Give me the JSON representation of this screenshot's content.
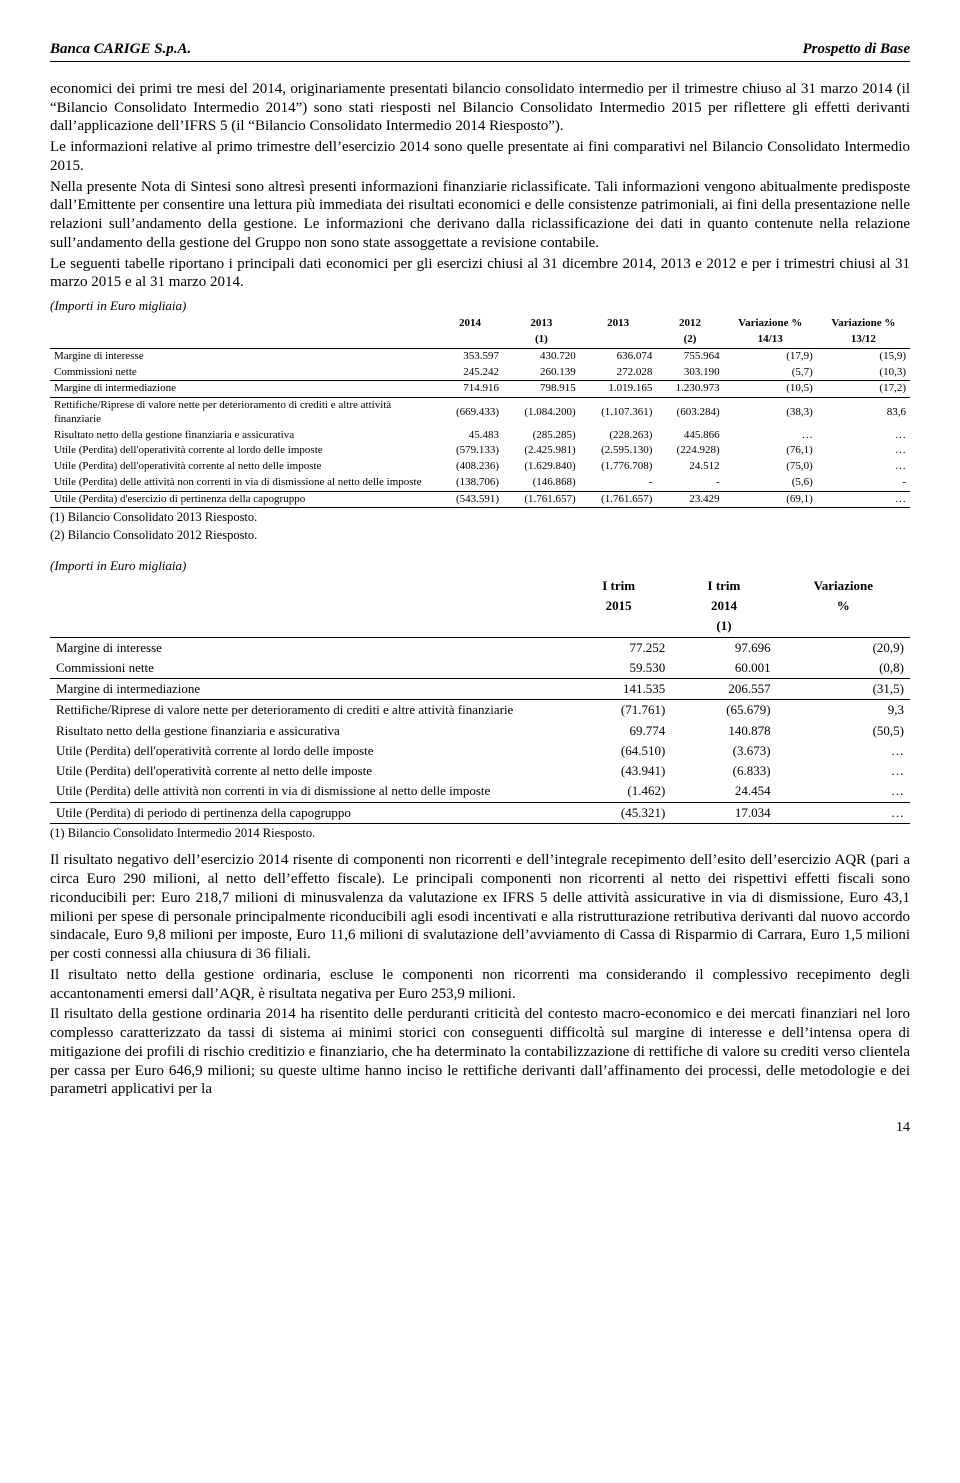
{
  "header": {
    "left": "Banca CARIGE S.p.A.",
    "right": "Prospetto di Base"
  },
  "para1": "economici dei primi tre mesi del 2014, originariamente presentati bilancio consolidato intermedio per il trimestre chiuso al 31 marzo 2014 (il “Bilancio Consolidato Intermedio 2014”) sono stati riesposti nel Bilancio Consolidato Intermedio 2015 per riflettere gli effetti derivanti dall’applicazione dell’IFRS 5 (il “Bilancio Consolidato Intermedio 2014 Riesposto”).",
  "para2": "Le informazioni relative al primo trimestre dell’esercizio 2014 sono quelle presentate ai fini comparativi nel Bilancio Consolidato Intermedio 2015.",
  "para3": "Nella presente Nota di Sintesi sono altresì presenti informazioni finanziarie riclassificate. Tali informazioni vengono abitualmente predisposte dall’Emittente per consentire una lettura più immediata dei risultati economici e delle consistenze patrimoniali, ai fini della presentazione nelle relazioni sull’andamento della gestione. Le informazioni che derivano dalla riclassificazione dei dati in quanto contenute nella relazione sull’andamento della gestione del Gruppo non sono state assoggettate a revisione contabile.",
  "para4": "Le seguenti tabelle riportano i principali dati economici per gli esercizi chiusi al 31 dicembre 2014, 2013 e 2012 e per i trimestri chiusi al 31 marzo 2015 e al 31 marzo 2014.",
  "tbl_caption": "(Importi in Euro migliaia)",
  "table1": {
    "headers1": [
      "2014",
      "2013",
      "2013",
      "2012",
      "Variazione %",
      "Variazione %"
    ],
    "headers2": [
      "",
      "(1)",
      "",
      "(2)",
      "14/13",
      "13/12"
    ],
    "rows": [
      [
        "Margine di interesse",
        "353.597",
        "430.720",
        "636.074",
        "755.964",
        "(17,9)",
        "(15,9)"
      ],
      [
        "Commissioni nette",
        "245.242",
        "260.139",
        "272.028",
        "303.190",
        "(5,7)",
        "(10,3)"
      ],
      [
        "Margine di intermediazione",
        "714.916",
        "798.915",
        "1.019.165",
        "1.230.973",
        "(10,5)",
        "(17,2)"
      ],
      [
        "Rettifiche/Riprese di valore nette per deterioramento di crediti e altre attività finanziarie",
        "(669.433)",
        "(1.084.200)",
        "(1.107.361)",
        "(603.284)",
        "(38,3)",
        "83,6"
      ],
      [
        "Risultato netto della gestione finanziaria e assicurativa",
        "45.483",
        "(285.285)",
        "(228.263)",
        "445.866",
        "…",
        "…"
      ],
      [
        "Utile (Perdita) dell'operatività corrente al lordo delle imposte",
        "(579.133)",
        "(2.425.981)",
        "(2.595.130)",
        "(224.928)",
        "(76,1)",
        "…"
      ],
      [
        "Utile (Perdita) dell'operatività corrente al netto delle imposte",
        "(408.236)",
        "(1.629.840)",
        "(1.776.708)",
        "24.512",
        "(75,0)",
        "…"
      ],
      [
        "Utile (Perdita) delle attività non correnti in via di dismissione al netto delle imposte",
        "(138.706)",
        "(146.868)",
        "-",
        "-",
        "(5,6)",
        "-"
      ],
      [
        "Utile (Perdita) d'esercizio di pertinenza della capogruppo",
        "(543.591)",
        "(1.761.657)",
        "(1.761.657)",
        "23.429",
        "(69,1)",
        "…"
      ]
    ],
    "notes": [
      "(1)  Bilancio Consolidato 2013 Riesposto.",
      "(2)  Bilancio Consolidato 2012 Riesposto."
    ]
  },
  "table2": {
    "headers1": [
      "I trim",
      "I trim",
      "Variazione"
    ],
    "headers2": [
      "2015",
      "2014",
      "%"
    ],
    "headers3": [
      "",
      "(1)",
      ""
    ],
    "rows": [
      [
        "Margine di interesse",
        "77.252",
        "97.696",
        "(20,9)"
      ],
      [
        "Commissioni nette",
        "59.530",
        "60.001",
        "(0,8)"
      ],
      [
        "Margine di intermediazione",
        "141.535",
        "206.557",
        "(31,5)"
      ],
      [
        "Rettifiche/Riprese di valore nette per deterioramento di crediti e altre attività finanziarie",
        "(71.761)",
        "(65.679)",
        "9,3"
      ],
      [
        "Risultato netto della gestione finanziaria e assicurativa",
        "69.774",
        "140.878",
        "(50,5)"
      ],
      [
        "Utile (Perdita) dell'operatività corrente al lordo delle imposte",
        "(64.510)",
        "(3.673)",
        "…"
      ],
      [
        "Utile (Perdita) dell'operatività corrente al netto delle imposte",
        "(43.941)",
        "(6.833)",
        "…"
      ],
      [
        "Utile (Perdita) delle attività non correnti in via di dismissione al netto delle imposte",
        "(1.462)",
        "24.454",
        "…"
      ],
      [
        "Utile (Perdita) di periodo di pertinenza della capogruppo",
        "(45.321)",
        "17.034",
        "…"
      ]
    ],
    "note": "(1)  Bilancio Consolidato Intermedio 2014 Riesposto."
  },
  "para5": "Il risultato negativo dell’esercizio 2014 risente di componenti non ricorrenti e dell’integrale recepimento dell’esito dell’esercizio AQR (pari a circa Euro 290 milioni, al netto dell’effetto fiscale). Le principali componenti non ricorrenti al netto dei rispettivi effetti fiscali sono riconducibili per: Euro 218,7 milioni di minusvalenza da valutazione ex IFRS 5 delle attività assicurative in via di dismissione, Euro 43,1 milioni per spese di personale principalmente riconducibili agli esodi incentivati e alla ristrutturazione retributiva derivanti dal nuovo accordo sindacale, Euro 9,8 milioni per imposte, Euro 11,6 milioni di svalutazione dell’avviamento di Cassa di Risparmio di Carrara, Euro 1,5 milioni per costi connessi alla chiusura di 36 filiali.",
  "para6": "Il risultato netto della gestione ordinaria, escluse le componenti non ricorrenti ma considerando il complessivo recepimento degli accantonamenti emersi dall’AQR, è risultata negativa per Euro 253,9 milioni.",
  "para7": "Il risultato della gestione ordinaria 2014 ha risentito delle perduranti criticità del contesto macro-economico e dei mercati finanziari nel loro complesso caratterizzato da tassi di sistema ai minimi storici con conseguenti difficoltà sul margine di interesse e dell’intensa opera di mitigazione dei profili di rischio creditizio e finanziario, che ha determinato la contabilizzazione di rettifiche di valore su crediti verso clientela per cassa per Euro 646,9 milioni; su queste ultime hanno inciso le rettifiche derivanti dall’affinamento dei processi, delle metodologie e dei parametri applicativi per la",
  "page_num": "14"
}
